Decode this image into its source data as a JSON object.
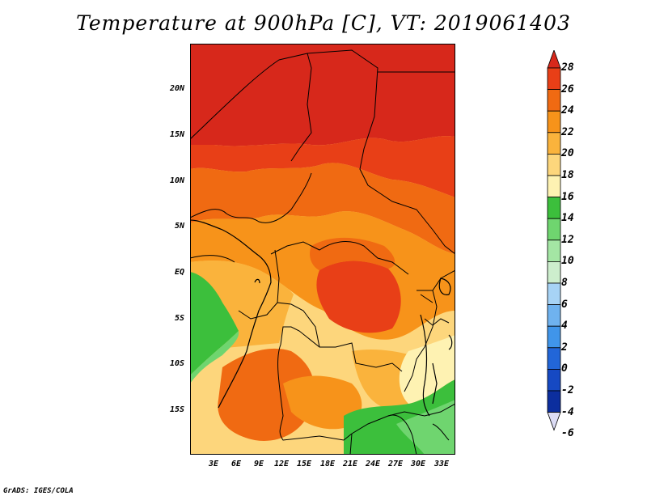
{
  "title": "Temperature at 900hPa [C], VT: 2019061403",
  "credit": "GrADS: IGES/COLA",
  "lat_ticks": [
    "20N",
    "15N",
    "10N",
    "5N",
    "EQ",
    "5S",
    "10S",
    "15S"
  ],
  "lon_ticks": [
    "3E",
    "6E",
    "9E",
    "12E",
    "15E",
    "18E",
    "21E",
    "24E",
    "27E",
    "30E",
    "33E"
  ],
  "colorbar": {
    "levels": [
      "28",
      "26",
      "24",
      "22",
      "20",
      "18",
      "16",
      "14",
      "12",
      "10",
      "8",
      "6",
      "4",
      "2",
      "0",
      "-2",
      "-4",
      "-6"
    ],
    "colors": [
      "#d7281b",
      "#e83f17",
      "#f06a12",
      "#f7931a",
      "#fab33c",
      "#fdd67c",
      "#fef2b2",
      "#3cbf3c",
      "#6fd56f",
      "#a4e6a4",
      "#cdeecd",
      "#a7d3f5",
      "#6fb2ef",
      "#4095ea",
      "#2266d8",
      "#1649c3",
      "#0c2e9e",
      "#071a6b"
    ]
  },
  "chart_data": {
    "type": "heatmap",
    "title": "Temperature at 900hPa [C], VT: 2019061403",
    "variable": "Temperature at 900hPa",
    "units": "C",
    "valid_time": "2019061403",
    "x_range_deg": [
      0,
      35
    ],
    "y_range_deg": [
      -20,
      24.5
    ],
    "color_levels": [
      -6,
      -4,
      -2,
      0,
      2,
      4,
      6,
      8,
      10,
      12,
      14,
      16,
      18,
      20,
      22,
      24,
      26,
      28
    ]
  }
}
